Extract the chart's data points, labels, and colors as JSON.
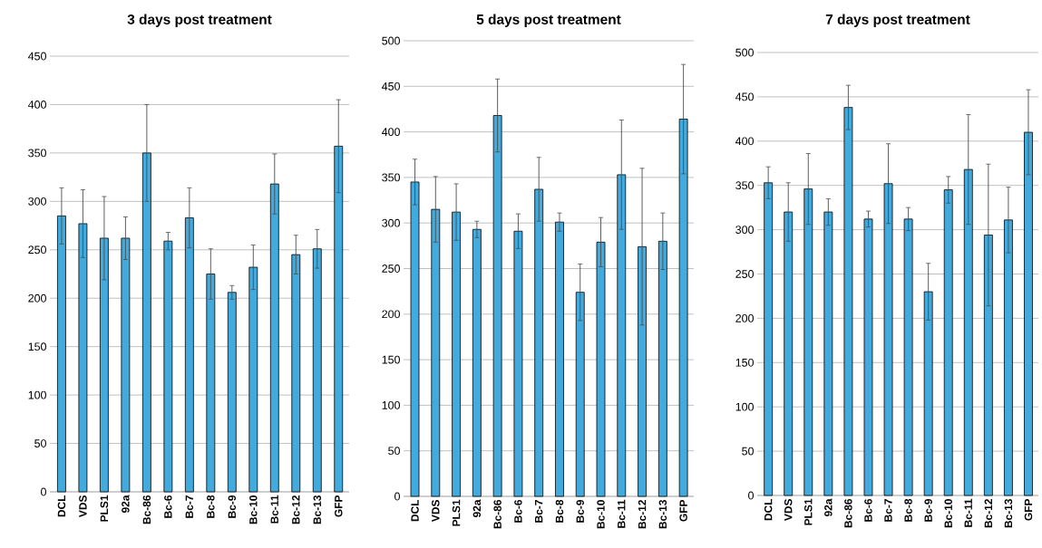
{
  "chart_data": [
    {
      "type": "bar",
      "title": "3 days post treatment",
      "categories": [
        "DCL",
        "VDS",
        "PLS1",
        "92a",
        "Bc-86",
        "Bc-6",
        "Bc-7",
        "Bc-8",
        "Bc-9",
        "Bc-10",
        "Bc-11",
        "Bc-12",
        "Bc-13",
        "GFP"
      ],
      "values": [
        285,
        277,
        262,
        262,
        350,
        259,
        283,
        225,
        206,
        232,
        318,
        245,
        251,
        357
      ],
      "errors": [
        29,
        35,
        43,
        22,
        50,
        9,
        31,
        26,
        7,
        23,
        31,
        20,
        20,
        48
      ],
      "color": "#42aadd",
      "ylim": [
        0,
        450
      ],
      "yticks": [
        0,
        50,
        100,
        150,
        200,
        250,
        300,
        350,
        400,
        450
      ],
      "grid": "y"
    },
    {
      "type": "bar",
      "title": "5 days post treatment",
      "categories": [
        "DCL",
        "VDS",
        "PLS1",
        "92a",
        "Bc-86",
        "Bc-6",
        "Bc-7",
        "Bc-8",
        "Bc-9",
        "Bc-10",
        "Bc-11",
        "Bc-12",
        "Bc-13",
        "GFP"
      ],
      "values": [
        345,
        315,
        312,
        293,
        418,
        291,
        337,
        301,
        224,
        279,
        353,
        274,
        280,
        414
      ],
      "errors": [
        25,
        36,
        31,
        9,
        40,
        19,
        35,
        10,
        31,
        27,
        60,
        86,
        31,
        60
      ],
      "color": "#42aadd",
      "ylim": [
        0,
        500
      ],
      "yticks": [
        0,
        50,
        100,
        150,
        200,
        250,
        300,
        350,
        400,
        450,
        500
      ],
      "grid": "y"
    },
    {
      "type": "bar",
      "title": "7 days post treatment",
      "categories": [
        "DCL",
        "VDS",
        "PLS1",
        "92a",
        "Bc-86",
        "Bc-6",
        "Bc-7",
        "Bc-8",
        "Bc-9",
        "Bc-10",
        "Bc-11",
        "Bc-12",
        "Bc-13",
        "GFP"
      ],
      "values": [
        353,
        320,
        346,
        320,
        438,
        312,
        352,
        312,
        230,
        345,
        368,
        294,
        311,
        410
      ],
      "errors": [
        18,
        33,
        40,
        15,
        25,
        9,
        45,
        13,
        32,
        15,
        62,
        80,
        37,
        48
      ],
      "color": "#42aadd",
      "ylim": [
        0,
        500
      ],
      "yticks": [
        0,
        50,
        100,
        150,
        200,
        250,
        300,
        350,
        400,
        450,
        500
      ],
      "grid": "y"
    }
  ]
}
